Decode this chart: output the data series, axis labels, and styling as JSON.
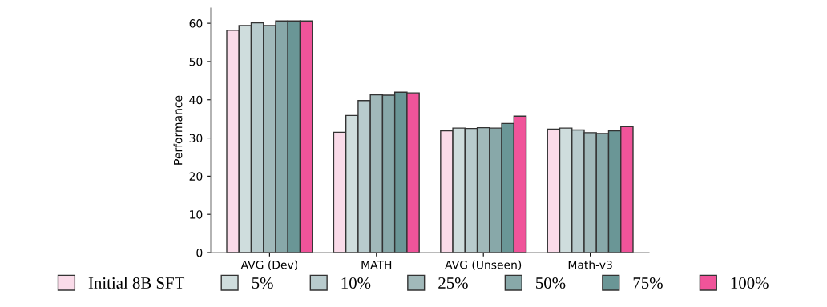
{
  "chart_data": {
    "type": "bar",
    "ylabel": "Performance",
    "categories": [
      "AVG (Dev)",
      "MATH",
      "AVG (Unseen)",
      "Math-v3"
    ],
    "series": [
      {
        "name": "Initial 8B SFT",
        "color": "#fadbe9",
        "values": [
          58.2,
          31.5,
          31.9,
          32.3
        ]
      },
      {
        "name": "5%",
        "color": "#cfdddd",
        "values": [
          59.4,
          35.9,
          32.6,
          32.6
        ]
      },
      {
        "name": "10%",
        "color": "#b8cbcd",
        "values": [
          60.1,
          39.8,
          32.5,
          32.1
        ]
      },
      {
        "name": "25%",
        "color": "#a1b9ba",
        "values": [
          59.4,
          41.3,
          32.7,
          31.4
        ]
      },
      {
        "name": "50%",
        "color": "#88a8a9",
        "values": [
          60.6,
          41.2,
          32.6,
          31.2
        ]
      },
      {
        "name": "75%",
        "color": "#6a9696",
        "values": [
          60.6,
          42.0,
          33.8,
          31.9
        ]
      },
      {
        "name": "100%",
        "color": "#f0549a",
        "values": [
          60.6,
          41.8,
          35.7,
          33.0
        ]
      }
    ],
    "ylim": [
      0,
      64
    ],
    "yticks": [
      0,
      10,
      20,
      30,
      40,
      50,
      60
    ],
    "grid": false,
    "legend": "bottom"
  }
}
